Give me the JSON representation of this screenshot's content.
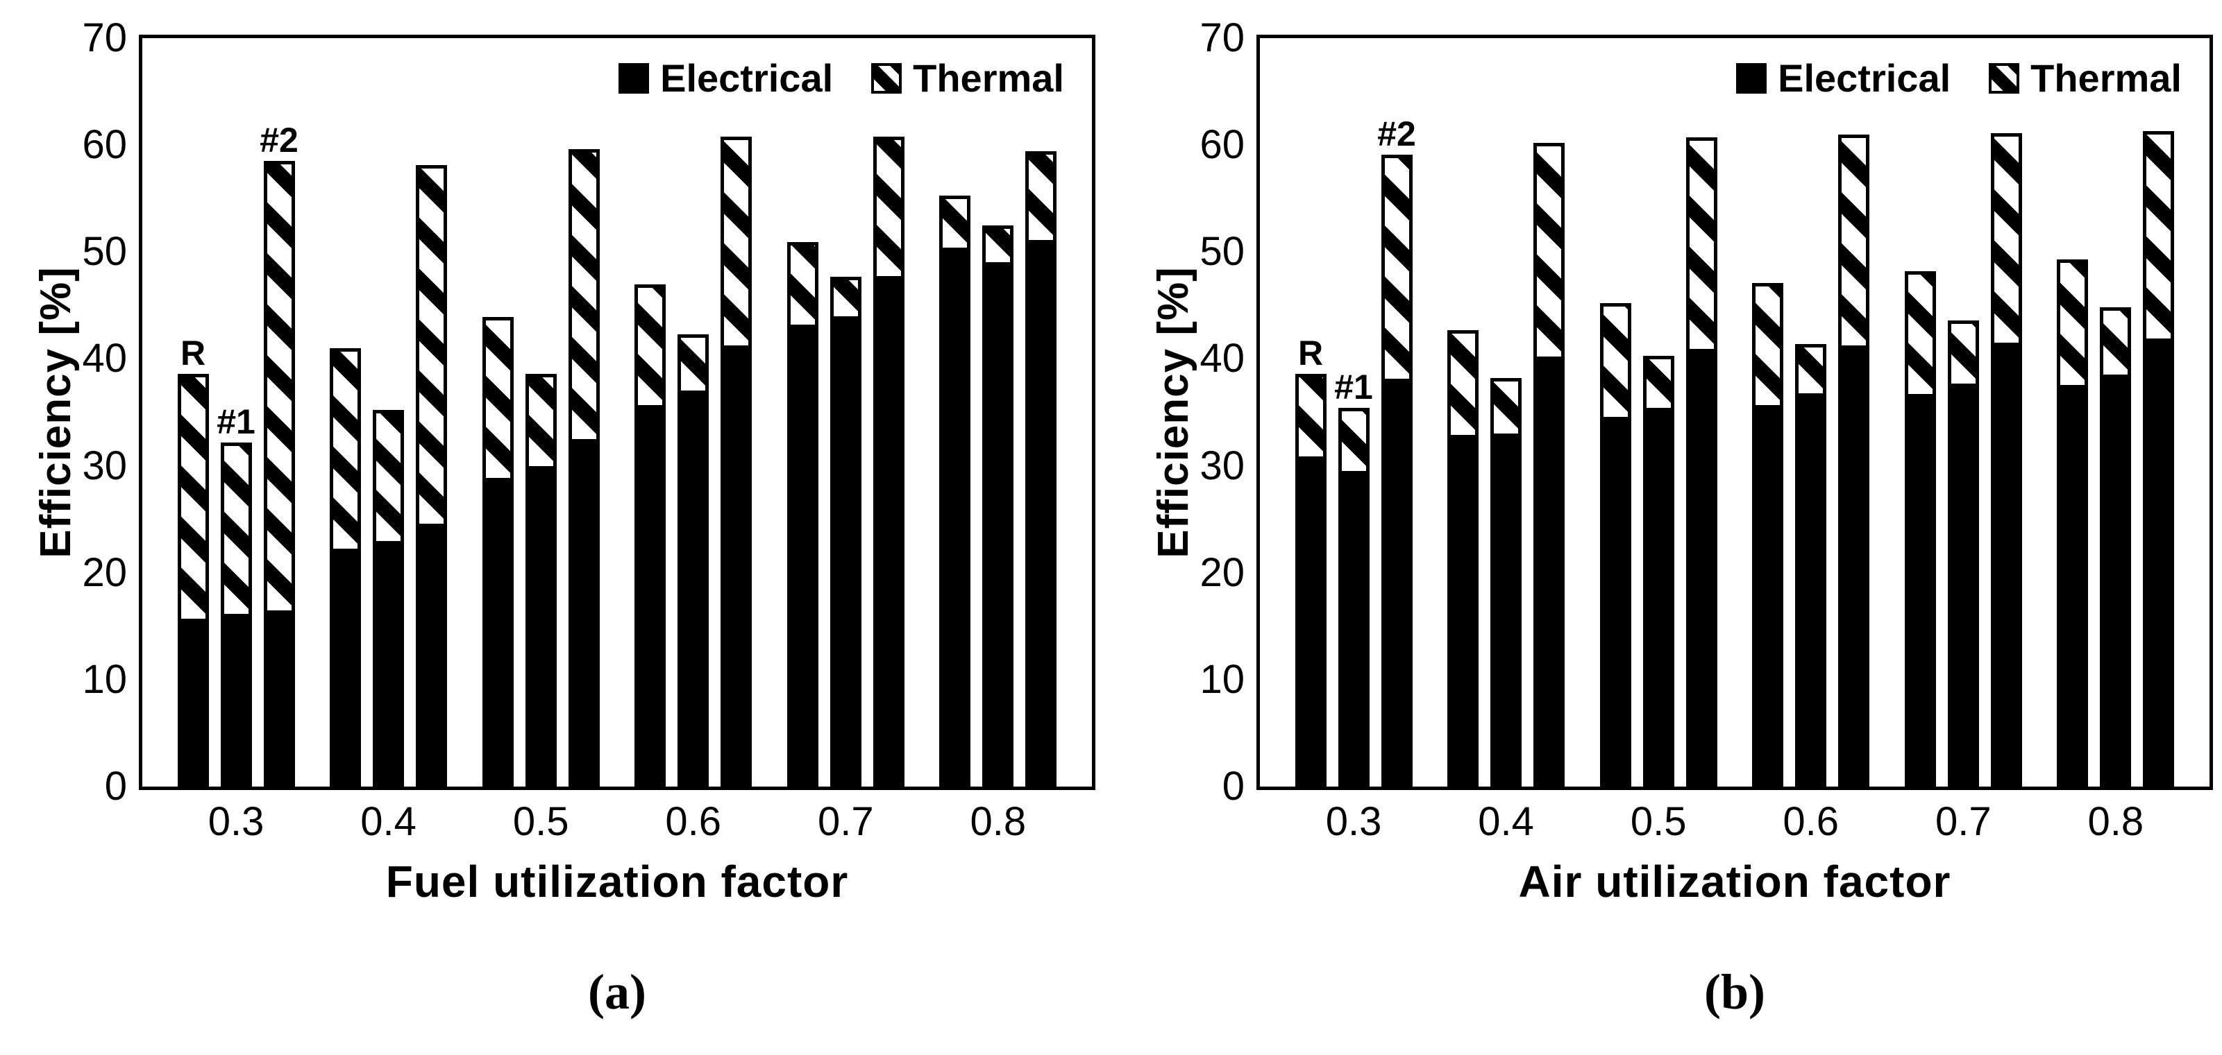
{
  "page": {
    "background": "#ffffff",
    "ink": "#000000"
  },
  "chart_data": [
    {
      "type": "bar",
      "stacked": true,
      "panel_caption": "(a)",
      "xlabel": "Fuel utilization factor",
      "ylabel": "Efficiency [%]",
      "legend": [
        "Electrical",
        "Thermal"
      ],
      "legend_position": "top-right-inside",
      "grid": false,
      "ylim": [
        0,
        70
      ],
      "yticks": [
        70,
        60,
        50,
        40,
        30,
        20,
        10,
        0
      ],
      "categories": [
        "0.3",
        "0.4",
        "0.5",
        "0.6",
        "0.7",
        "0.8"
      ],
      "bar_annotations": [
        "R",
        "#1",
        "#2"
      ],
      "series": [
        {
          "variant": "R",
          "electrical": [
            15.4,
            22.0,
            28.7,
            35.6,
            43.2,
            50.4
          ],
          "thermal": [
            23.2,
            19.0,
            15.2,
            11.4,
            7.7,
            4.9
          ]
        },
        {
          "variant": "#1",
          "electrical": [
            15.9,
            22.8,
            29.9,
            37.0,
            44.0,
            49.1
          ],
          "thermal": [
            16.3,
            12.4,
            8.7,
            5.3,
            3.7,
            3.4
          ]
        },
        {
          "variant": "#2",
          "electrical": [
            16.1,
            24.3,
            32.3,
            41.1,
            47.7,
            51.1
          ],
          "thermal": [
            42.4,
            33.8,
            27.3,
            19.7,
            13.1,
            8.3
          ]
        }
      ]
    },
    {
      "type": "bar",
      "stacked": true,
      "panel_caption": "(b)",
      "xlabel": "Air utilization factor",
      "ylabel": "Efficiency [%]",
      "legend": [
        "Electrical",
        "Thermal"
      ],
      "legend_position": "top-right-inside",
      "grid": false,
      "ylim": [
        0,
        70
      ],
      "yticks": [
        70,
        60,
        50,
        40,
        30,
        20,
        10,
        0
      ],
      "categories": [
        "0.3",
        "0.4",
        "0.5",
        "0.6",
        "0.7",
        "0.8"
      ],
      "bar_annotations": [
        "R",
        "#1",
        "#2"
      ],
      "series": [
        {
          "variant": "R",
          "electrical": [
            30.8,
            32.8,
            34.5,
            35.6,
            36.6,
            37.5
          ],
          "thermal": [
            7.8,
            9.9,
            10.7,
            11.5,
            11.6,
            11.8
          ]
        },
        {
          "variant": "#1",
          "electrical": [
            29.5,
            33.0,
            35.4,
            36.8,
            37.7,
            38.5
          ],
          "thermal": [
            5.9,
            5.2,
            4.9,
            4.6,
            5.9,
            6.3
          ]
        },
        {
          "variant": "#2",
          "electrical": [
            38.0,
            40.1,
            40.8,
            41.1,
            41.4,
            41.8
          ],
          "thermal": [
            21.1,
            20.1,
            19.9,
            19.9,
            19.7,
            19.5
          ]
        }
      ]
    }
  ]
}
